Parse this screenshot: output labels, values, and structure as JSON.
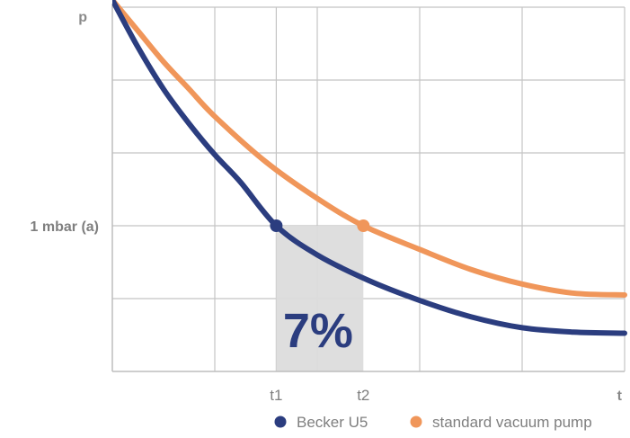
{
  "chart_data": {
    "type": "line",
    "xlabel": "t",
    "ylabel": "p",
    "xlim": [
      0,
      10
    ],
    "ylim": [
      0,
      10
    ],
    "grid": true,
    "legend_position": "bottom-right",
    "x_ticks": [
      {
        "label": "t1",
        "x": 3.2
      },
      {
        "label": "t2",
        "x": 4.9
      }
    ],
    "y_level": {
      "label": "1 mbar (a)",
      "y": 4
    },
    "shaded_region": {
      "x_start": 3.2,
      "x_end": 4.9,
      "label": "7%",
      "color": "#dcdcdc"
    },
    "series": [
      {
        "name": "Becker U5",
        "color": "#2b3d7f",
        "points": [
          [
            0,
            10.2
          ],
          [
            0.5,
            8.9
          ],
          [
            1,
            7.75
          ],
          [
            1.5,
            6.8
          ],
          [
            2,
            5.95
          ],
          [
            2.5,
            5.2
          ],
          [
            3.2,
            4.0
          ],
          [
            4,
            3.2
          ],
          [
            5,
            2.5
          ],
          [
            6,
            1.95
          ],
          [
            7,
            1.5
          ],
          [
            8,
            1.2
          ],
          [
            9,
            1.08
          ],
          [
            10,
            1.05
          ]
        ],
        "marker": [
          3.2,
          4.0
        ]
      },
      {
        "name": "standard vacuum pump",
        "color": "#f0965a",
        "points": [
          [
            0,
            10.2
          ],
          [
            0.5,
            9.35
          ],
          [
            1,
            8.5
          ],
          [
            1.5,
            7.75
          ],
          [
            2,
            7.0
          ],
          [
            3,
            5.75
          ],
          [
            4,
            4.75
          ],
          [
            4.9,
            4.0
          ],
          [
            6,
            3.35
          ],
          [
            7,
            2.8
          ],
          [
            8,
            2.4
          ],
          [
            9,
            2.15
          ],
          [
            10,
            2.1
          ]
        ],
        "marker": [
          4.9,
          4.0
        ]
      }
    ]
  }
}
